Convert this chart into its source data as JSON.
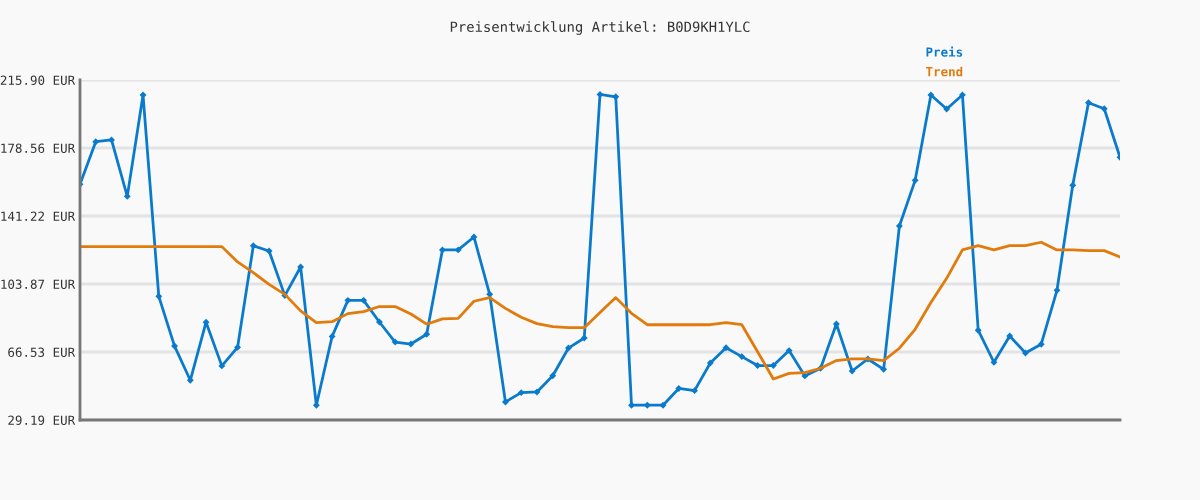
{
  "chart_data": {
    "type": "line",
    "title": "Preisentwicklung Artikel: B0D9KH1YLC",
    "categories": [
      null,
      null,
      null,
      null,
      null,
      null,
      null,
      null,
      null,
      null,
      null,
      null,
      null,
      null,
      null,
      null,
      null,
      null,
      null,
      null,
      null,
      null,
      null,
      null,
      null,
      null,
      null,
      null,
      null,
      null,
      null,
      null,
      null,
      null,
      null,
      null,
      null,
      null,
      null,
      null,
      null,
      null,
      null,
      null,
      null,
      null,
      null,
      null,
      null,
      null,
      null,
      null,
      null,
      null,
      null,
      null,
      null,
      null,
      null,
      null,
      null,
      null,
      null,
      null,
      null,
      null,
      null
    ],
    "series": [
      {
        "name": "Preis",
        "color": "#0a7bcc",
        "marker": "diamond",
        "values": [
          158.6,
          182.0,
          183.0,
          152.0,
          207.7,
          97.1,
          69.8,
          51.0,
          82.9,
          58.9,
          69.1,
          124.9,
          122.0,
          97.5,
          113.2,
          37.3,
          75.1,
          94.9,
          94.9,
          83.0,
          72.0,
          70.9,
          76.3,
          122.6,
          122.6,
          129.7,
          98.2,
          39.1,
          44.2,
          44.6,
          53.5,
          68.7,
          74.2,
          208.0,
          206.7,
          37.3,
          37.3,
          37.3,
          46.5,
          45.3,
          60.5,
          68.9,
          64.0,
          59.1,
          59.1,
          67.3,
          53.4,
          57.6,
          81.9,
          56.1,
          62.7,
          57.0,
          135.7,
          160.8,
          207.7,
          200.0,
          207.7,
          78.5,
          60.9,
          75.3,
          66.0,
          70.8,
          100.4,
          158.1,
          203.4,
          200.1,
          173.5
        ]
      },
      {
        "name": "Trend",
        "color": "#e07b0c",
        "marker": "none",
        "values": [
          124.4,
          124.4,
          124.4,
          124.4,
          124.4,
          124.4,
          124.4,
          124.4,
          124.4,
          124.4,
          116.0,
          110.1,
          103.7,
          98.2,
          89.1,
          82.7,
          83.2,
          87.6,
          88.7,
          91.5,
          91.5,
          87.4,
          81.8,
          84.7,
          85.0,
          94.4,
          96.4,
          90.5,
          85.6,
          82.1,
          80.5,
          79.9,
          79.9,
          88.2,
          96.4,
          87.8,
          81.5,
          81.5,
          81.5,
          81.5,
          81.5,
          82.7,
          81.5,
          66.7,
          51.7,
          54.8,
          55.2,
          57.6,
          61.8,
          62.7,
          62.7,
          61.8,
          68.6,
          79.0,
          93.7,
          107.0,
          122.6,
          124.9,
          122.6,
          124.9,
          124.9,
          126.8,
          122.6,
          122.6,
          122.2,
          122.2,
          118.7
        ]
      }
    ],
    "ylim": [
      29.19,
      215.9
    ],
    "yticks": [
      {
        "value": 29.19,
        "label": "29.19 EUR"
      },
      {
        "value": 66.53,
        "label": "66.53 EUR"
      },
      {
        "value": 103.87,
        "label": "103.87 EUR"
      },
      {
        "value": 141.22,
        "label": "141.22 EUR"
      },
      {
        "value": 178.56,
        "label": "178.56 EUR"
      },
      {
        "value": 215.9,
        "label": "215.90 EUR"
      }
    ],
    "grid": "y",
    "legend": "top right",
    "tick_labels": "y"
  }
}
